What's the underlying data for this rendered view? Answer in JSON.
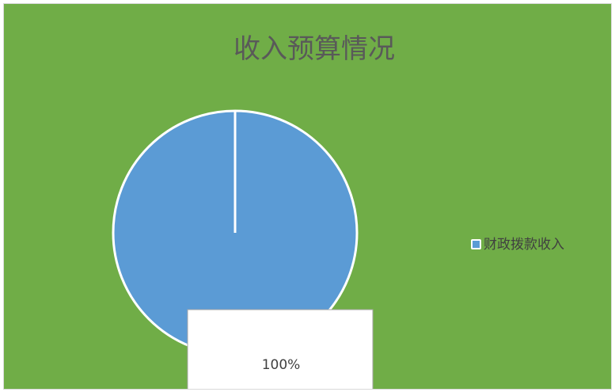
{
  "chart_data": {
    "type": "pie",
    "title": "收入预算情况",
    "categories": [
      "财政拨款收入"
    ],
    "values": [
      100
    ],
    "data_labels": [
      "100%"
    ],
    "legend": {
      "position": "right",
      "entries": [
        "财政拨款收入"
      ]
    }
  },
  "colors": {
    "background": "#70ad47",
    "slice": "#5b9bd5",
    "slice_outline": "#ffffff",
    "title_text": "#595959",
    "legend_text": "#404040",
    "label_box": "#ffffff",
    "label_box_border": "#a6a6a6",
    "label_text": "#404040"
  }
}
